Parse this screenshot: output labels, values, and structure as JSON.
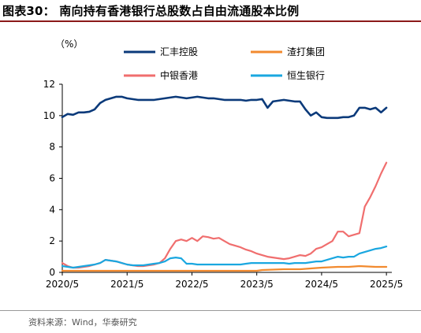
{
  "figure_title": "图表30：  南向持有香港银行总股数占自由流通股本比例",
  "unit": "（%）",
  "source": "资料来源：Wind，华泰研究",
  "chart_data": {
    "type": "line",
    "title": "",
    "xlabel": "",
    "ylabel": "",
    "unit": "（%）",
    "ylim": [
      0,
      12
    ],
    "yticks": [
      0,
      2,
      4,
      6,
      8,
      10,
      12
    ],
    "xlim": [
      "2020-05",
      "2025-06"
    ],
    "xticks": [
      "2020/5",
      "2021/5",
      "2022/5",
      "2023/5",
      "2024/5",
      "2025/5"
    ],
    "grid": false,
    "legend_position": "top, 2x2 grid",
    "series": [
      {
        "name": "汇丰控股",
        "color": "#0b3a7a",
        "points": [
          [
            "2020-05",
            9.9
          ],
          [
            "2020-06",
            10.1
          ],
          [
            "2020-07",
            10.05
          ],
          [
            "2020-08",
            10.2
          ],
          [
            "2020-09",
            10.2
          ],
          [
            "2020-10",
            10.25
          ],
          [
            "2020-11",
            10.4
          ],
          [
            "2020-12",
            10.8
          ],
          [
            "2021-01",
            11.0
          ],
          [
            "2021-02",
            11.1
          ],
          [
            "2021-03",
            11.2
          ],
          [
            "2021-04",
            11.2
          ],
          [
            "2021-05",
            11.1
          ],
          [
            "2021-06",
            11.05
          ],
          [
            "2021-07",
            11.0
          ],
          [
            "2021-08",
            11.0
          ],
          [
            "2021-09",
            11.0
          ],
          [
            "2021-10",
            11.0
          ],
          [
            "2021-11",
            11.05
          ],
          [
            "2021-12",
            11.1
          ],
          [
            "2022-01",
            11.15
          ],
          [
            "2022-02",
            11.2
          ],
          [
            "2022-03",
            11.15
          ],
          [
            "2022-04",
            11.1
          ],
          [
            "2022-05",
            11.15
          ],
          [
            "2022-06",
            11.2
          ],
          [
            "2022-07",
            11.15
          ],
          [
            "2022-08",
            11.1
          ],
          [
            "2022-09",
            11.1
          ],
          [
            "2022-10",
            11.05
          ],
          [
            "2022-11",
            11.0
          ],
          [
            "2022-12",
            11.0
          ],
          [
            "2023-01",
            11.0
          ],
          [
            "2023-02",
            11.0
          ],
          [
            "2023-03",
            10.95
          ],
          [
            "2023-04",
            11.0
          ],
          [
            "2023-05",
            11.0
          ],
          [
            "2023-06",
            11.05
          ],
          [
            "2023-07",
            10.5
          ],
          [
            "2023-08",
            10.9
          ],
          [
            "2023-09",
            10.95
          ],
          [
            "2023-10",
            11.0
          ],
          [
            "2023-11",
            10.95
          ],
          [
            "2023-12",
            10.9
          ],
          [
            "2024-01",
            10.9
          ],
          [
            "2024-02",
            10.4
          ],
          [
            "2024-03",
            10.0
          ],
          [
            "2024-04",
            10.2
          ],
          [
            "2024-05",
            9.9
          ],
          [
            "2024-06",
            9.85
          ],
          [
            "2024-07",
            9.85
          ],
          [
            "2024-08",
            9.85
          ],
          [
            "2024-09",
            9.9
          ],
          [
            "2024-10",
            9.9
          ],
          [
            "2024-11",
            10.0
          ],
          [
            "2024-12",
            10.5
          ],
          [
            "2025-01",
            10.5
          ],
          [
            "2025-02",
            10.4
          ],
          [
            "2025-03",
            10.5
          ],
          [
            "2025-04",
            10.2
          ],
          [
            "2025-05",
            10.5
          ]
        ]
      },
      {
        "name": "渣打集团",
        "color": "#f28a2e",
        "points": [
          [
            "2020-05",
            0.1
          ],
          [
            "2020-10",
            0.1
          ],
          [
            "2021-05",
            0.1
          ],
          [
            "2021-10",
            0.1
          ],
          [
            "2022-05",
            0.1
          ],
          [
            "2022-10",
            0.1
          ],
          [
            "2023-05",
            0.1
          ],
          [
            "2023-06",
            0.15
          ],
          [
            "2023-10",
            0.2
          ],
          [
            "2024-01",
            0.2
          ],
          [
            "2024-03",
            0.25
          ],
          [
            "2024-05",
            0.3
          ],
          [
            "2024-08",
            0.35
          ],
          [
            "2024-10",
            0.35
          ],
          [
            "2024-12",
            0.4
          ],
          [
            "2025-03",
            0.35
          ],
          [
            "2025-05",
            0.35
          ]
        ]
      },
      {
        "name": "中银香港",
        "color": "#f06e6e",
        "points": [
          [
            "2020-05",
            0.6
          ],
          [
            "2020-06",
            0.4
          ],
          [
            "2020-07",
            0.3
          ],
          [
            "2020-08",
            0.3
          ],
          [
            "2020-09",
            0.35
          ],
          [
            "2020-10",
            0.4
          ],
          [
            "2020-11",
            0.5
          ],
          [
            "2020-12",
            0.6
          ],
          [
            "2021-01",
            0.8
          ],
          [
            "2021-02",
            0.75
          ],
          [
            "2021-03",
            0.7
          ],
          [
            "2021-04",
            0.6
          ],
          [
            "2021-05",
            0.5
          ],
          [
            "2021-06",
            0.45
          ],
          [
            "2021-07",
            0.4
          ],
          [
            "2021-08",
            0.4
          ],
          [
            "2021-09",
            0.45
          ],
          [
            "2021-10",
            0.5
          ],
          [
            "2021-11",
            0.6
          ],
          [
            "2021-12",
            0.9
          ],
          [
            "2022-01",
            1.5
          ],
          [
            "2022-02",
            2.0
          ],
          [
            "2022-03",
            2.1
          ],
          [
            "2022-04",
            2.0
          ],
          [
            "2022-05",
            2.2
          ],
          [
            "2022-06",
            2.0
          ],
          [
            "2022-07",
            2.3
          ],
          [
            "2022-08",
            2.25
          ],
          [
            "2022-09",
            2.15
          ],
          [
            "2022-10",
            2.2
          ],
          [
            "2022-11",
            2.0
          ],
          [
            "2022-12",
            1.8
          ],
          [
            "2023-01",
            1.7
          ],
          [
            "2023-02",
            1.6
          ],
          [
            "2023-03",
            1.45
          ],
          [
            "2023-04",
            1.35
          ],
          [
            "2023-05",
            1.2
          ],
          [
            "2023-06",
            1.1
          ],
          [
            "2023-07",
            1.0
          ],
          [
            "2023-08",
            0.95
          ],
          [
            "2023-09",
            0.9
          ],
          [
            "2023-10",
            0.85
          ],
          [
            "2023-11",
            0.9
          ],
          [
            "2023-12",
            1.0
          ],
          [
            "2024-01",
            1.1
          ],
          [
            "2024-02",
            1.05
          ],
          [
            "2024-03",
            1.2
          ],
          [
            "2024-04",
            1.5
          ],
          [
            "2024-05",
            1.6
          ],
          [
            "2024-06",
            1.8
          ],
          [
            "2024-07",
            2.0
          ],
          [
            "2024-08",
            2.6
          ],
          [
            "2024-09",
            2.6
          ],
          [
            "2024-10",
            2.3
          ],
          [
            "2024-11",
            2.4
          ],
          [
            "2024-12",
            2.5
          ],
          [
            "2025-01",
            4.2
          ],
          [
            "2025-02",
            4.8
          ],
          [
            "2025-03",
            5.5
          ],
          [
            "2025-04",
            6.3
          ],
          [
            "2025-05",
            7.0
          ]
        ]
      },
      {
        "name": "恒生银行",
        "color": "#1aa7e0",
        "points": [
          [
            "2020-05",
            0.4
          ],
          [
            "2020-06",
            0.35
          ],
          [
            "2020-07",
            0.3
          ],
          [
            "2020-08",
            0.35
          ],
          [
            "2020-09",
            0.4
          ],
          [
            "2020-10",
            0.45
          ],
          [
            "2020-11",
            0.5
          ],
          [
            "2020-12",
            0.6
          ],
          [
            "2021-01",
            0.8
          ],
          [
            "2021-02",
            0.75
          ],
          [
            "2021-03",
            0.7
          ],
          [
            "2021-04",
            0.6
          ],
          [
            "2021-05",
            0.5
          ],
          [
            "2021-06",
            0.45
          ],
          [
            "2021-07",
            0.45
          ],
          [
            "2021-08",
            0.45
          ],
          [
            "2021-09",
            0.5
          ],
          [
            "2021-10",
            0.55
          ],
          [
            "2021-11",
            0.6
          ],
          [
            "2021-12",
            0.7
          ],
          [
            "2022-01",
            0.9
          ],
          [
            "2022-02",
            0.95
          ],
          [
            "2022-03",
            0.9
          ],
          [
            "2022-04",
            0.55
          ],
          [
            "2022-05",
            0.55
          ],
          [
            "2022-06",
            0.5
          ],
          [
            "2022-07",
            0.5
          ],
          [
            "2022-08",
            0.5
          ],
          [
            "2022-09",
            0.5
          ],
          [
            "2022-10",
            0.5
          ],
          [
            "2022-11",
            0.5
          ],
          [
            "2022-12",
            0.5
          ],
          [
            "2023-01",
            0.5
          ],
          [
            "2023-02",
            0.5
          ],
          [
            "2023-03",
            0.55
          ],
          [
            "2023-04",
            0.6
          ],
          [
            "2023-05",
            0.6
          ],
          [
            "2023-06",
            0.6
          ],
          [
            "2023-07",
            0.6
          ],
          [
            "2023-08",
            0.6
          ],
          [
            "2023-09",
            0.6
          ],
          [
            "2023-10",
            0.6
          ],
          [
            "2023-11",
            0.55
          ],
          [
            "2023-12",
            0.6
          ],
          [
            "2024-01",
            0.6
          ],
          [
            "2024-02",
            0.6
          ],
          [
            "2024-03",
            0.65
          ],
          [
            "2024-04",
            0.7
          ],
          [
            "2024-05",
            0.7
          ],
          [
            "2024-06",
            0.8
          ],
          [
            "2024-07",
            0.9
          ],
          [
            "2024-08",
            1.0
          ],
          [
            "2024-09",
            0.95
          ],
          [
            "2024-10",
            1.0
          ],
          [
            "2024-11",
            1.0
          ],
          [
            "2024-12",
            1.2
          ],
          [
            "2025-01",
            1.3
          ],
          [
            "2025-02",
            1.4
          ],
          [
            "2025-03",
            1.5
          ],
          [
            "2025-04",
            1.55
          ],
          [
            "2025-05",
            1.65
          ]
        ]
      }
    ]
  }
}
